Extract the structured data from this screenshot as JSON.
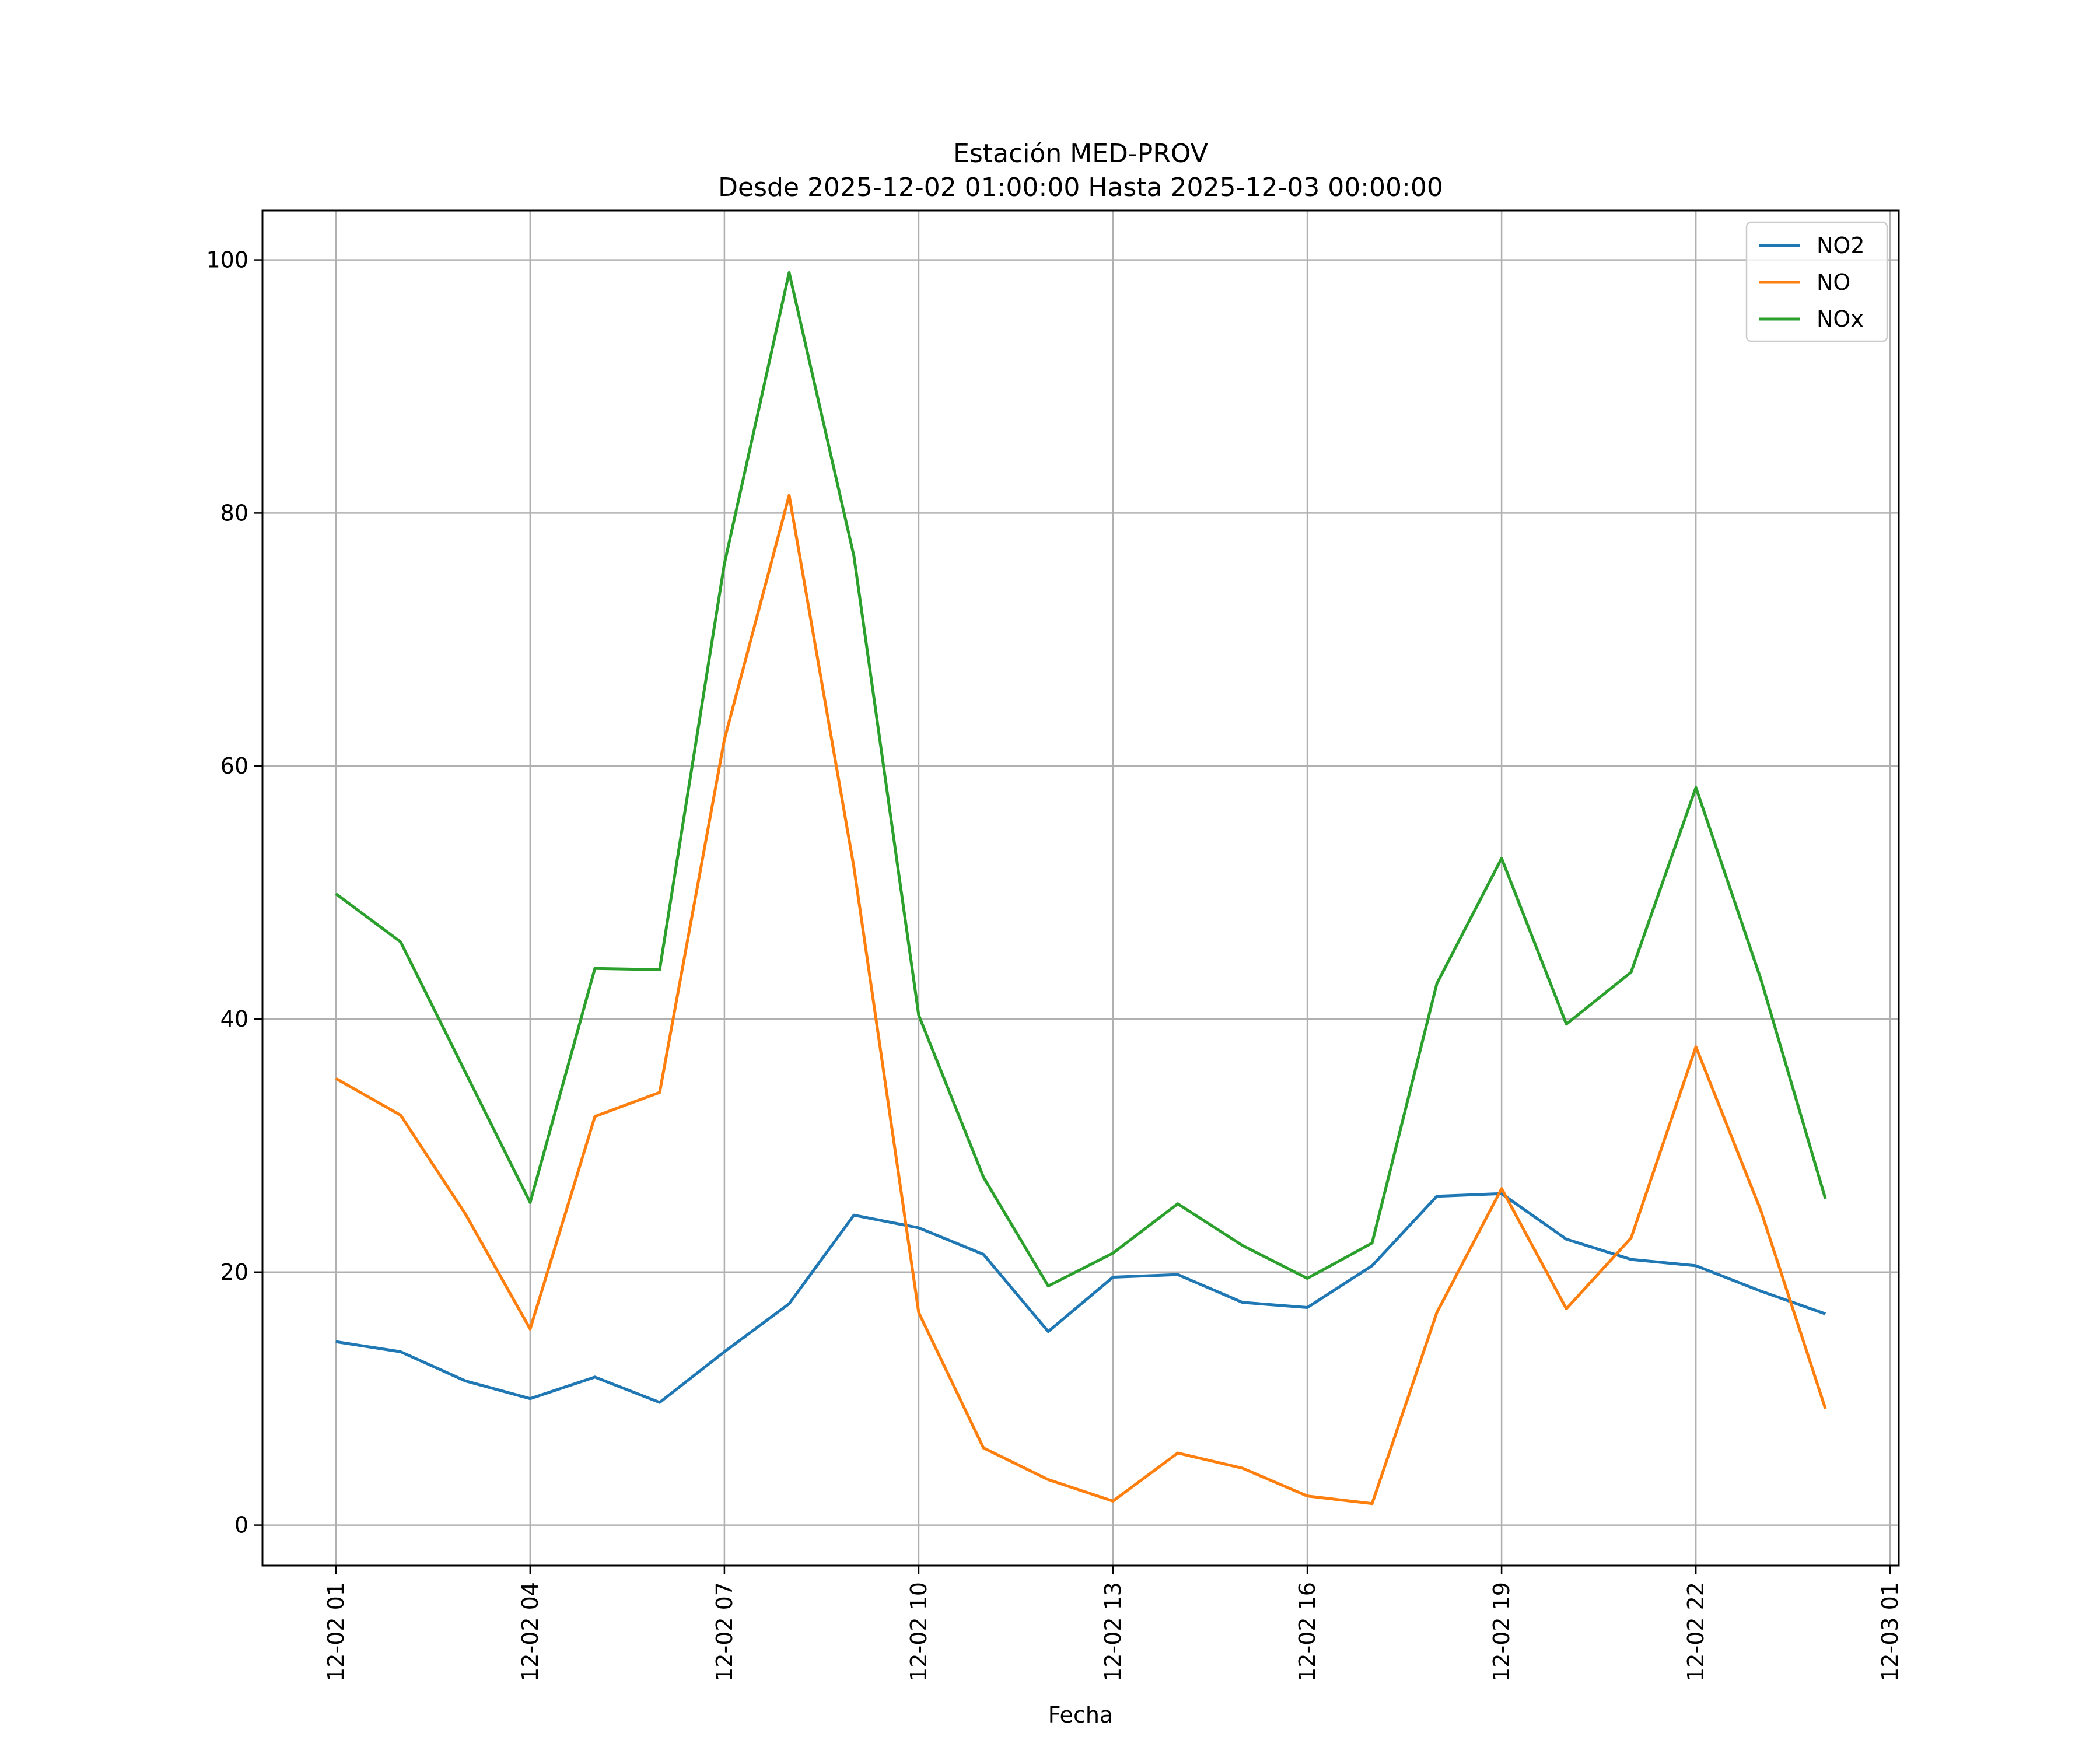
{
  "chart_data": {
    "type": "line",
    "title": "Estación MED-PROV",
    "subtitle": "Desde 2025-12-02 01:00:00 Hasta 2025-12-03 00:00:00",
    "xlabel": "Fecha",
    "ylabel": "",
    "x": [
      "2025-12-02 01:00",
      "2025-12-02 02:00",
      "2025-12-02 03:00",
      "2025-12-02 04:00",
      "2025-12-02 05:00",
      "2025-12-02 06:00",
      "2025-12-02 07:00",
      "2025-12-02 08:00",
      "2025-12-02 09:00",
      "2025-12-02 10:00",
      "2025-12-02 11:00",
      "2025-12-02 12:00",
      "2025-12-02 13:00",
      "2025-12-02 14:00",
      "2025-12-02 15:00",
      "2025-12-02 16:00",
      "2025-12-02 17:00",
      "2025-12-02 18:00",
      "2025-12-02 19:00",
      "2025-12-02 20:00",
      "2025-12-02 21:00",
      "2025-12-02 22:00",
      "2025-12-02 23:00",
      "2025-12-03 00:00"
    ],
    "xticks": [
      "2025-12-02 01:00",
      "2025-12-02 04:00",
      "2025-12-02 07:00",
      "2025-12-02 10:00",
      "2025-12-02 13:00",
      "2025-12-02 16:00",
      "2025-12-02 19:00",
      "2025-12-02 22:00",
      "2025-12-03 01:00"
    ],
    "xtick_labels": [
      "12-02 01",
      "12-02 04",
      "12-02 07",
      "12-02 10",
      "12-02 13",
      "12-02 16",
      "12-02 19",
      "12-02 22",
      "12-03 01"
    ],
    "xlim": [
      "2025-12-01 23:52",
      "2025-12-03 01:08"
    ],
    "ylim": [
      -3.2,
      103.9
    ],
    "yticks": [
      0,
      20,
      40,
      60,
      80,
      100
    ],
    "grid": true,
    "legend": "top-right",
    "series": [
      {
        "name": "NO2",
        "color": "#1f77b4",
        "values": [
          14.5,
          13.7,
          11.4,
          10.0,
          11.7,
          9.7,
          13.7,
          17.5,
          24.5,
          23.5,
          21.4,
          15.3,
          19.6,
          19.8,
          17.6,
          17.2,
          20.5,
          26.0,
          26.2,
          22.6,
          21.0,
          20.5,
          18.5,
          16.7
        ]
      },
      {
        "name": "NO",
        "color": "#ff7f0e",
        "values": [
          35.3,
          32.4,
          24.6,
          15.5,
          32.3,
          34.2,
          62.1,
          81.4,
          52.0,
          16.8,
          6.1,
          3.6,
          1.9,
          5.7,
          4.5,
          2.3,
          1.7,
          16.8,
          26.6,
          17.1,
          22.7,
          37.8,
          24.9,
          9.2
        ]
      },
      {
        "name": "NOx",
        "color": "#2ca02c",
        "values": [
          49.9,
          46.1,
          35.8,
          25.5,
          44.0,
          43.9,
          76.0,
          99.0,
          76.6,
          40.3,
          27.5,
          18.9,
          21.5,
          25.4,
          22.1,
          19.5,
          22.3,
          42.8,
          52.7,
          39.6,
          43.7,
          58.3,
          43.2,
          25.8
        ]
      }
    ]
  }
}
